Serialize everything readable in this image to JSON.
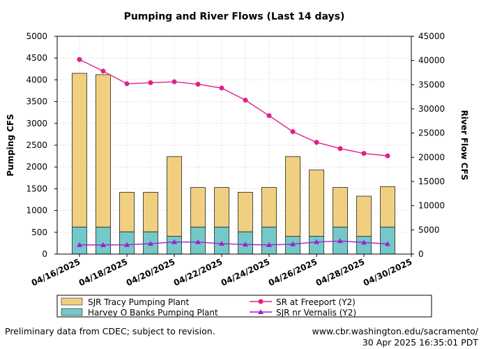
{
  "chart_data": {
    "type": "bar",
    "title": "Pumping and River Flows (Last 14 days)",
    "ylabel": "Pumping CFS",
    "y2label": "River Flow CFS",
    "ylim": [
      0,
      5000
    ],
    "y2lim": [
      0,
      45000
    ],
    "yticks": [
      0,
      500,
      1000,
      1500,
      2000,
      2500,
      3000,
      3500,
      4000,
      4500,
      5000
    ],
    "y2ticks": [
      0,
      5000,
      10000,
      15000,
      20000,
      25000,
      30000,
      35000,
      40000,
      45000
    ],
    "x_dates": [
      "04/16/2025",
      "04/17/2025",
      "04/18/2025",
      "04/19/2025",
      "04/20/2025",
      "04/21/2025",
      "04/22/2025",
      "04/23/2025",
      "04/24/2025",
      "04/25/2025",
      "04/26/2025",
      "04/27/2025",
      "04/28/2025",
      "04/29/2025"
    ],
    "xtick_labels": [
      "04/16/2025",
      "04/18/2025",
      "04/20/2025",
      "04/22/2025",
      "04/24/2025",
      "04/26/2025",
      "04/28/2025",
      "04/30/2025"
    ],
    "xtick_index": [
      0,
      2,
      4,
      6,
      8,
      10,
      12,
      14
    ],
    "stacked_series": [
      {
        "name": "Harvey O Banks Pumping Plant",
        "color": "#74c8c8",
        "values": [
          620,
          620,
          510,
          510,
          410,
          620,
          620,
          510,
          620,
          410,
          410,
          620,
          410,
          620
        ]
      },
      {
        "name": "SJR Tracy Pumping Plant",
        "color": "#f0d080",
        "values": [
          3530,
          3500,
          910,
          910,
          1830,
          910,
          910,
          910,
          910,
          1830,
          1520,
          910,
          920,
          930
        ]
      }
    ],
    "line_series": [
      {
        "name": "SR at Freeport (Y2)",
        "color": "#e0208a",
        "marker": "circle",
        "values": [
          40200,
          37800,
          35200,
          35400,
          35600,
          35100,
          34300,
          31800,
          28600,
          25300,
          23100,
          21800,
          20800,
          20300
        ]
      },
      {
        "name": "SJR nr Vernalis (Y2)",
        "color": "#a020d0",
        "marker": "triangle",
        "values": [
          1900,
          1880,
          1920,
          2150,
          2500,
          2480,
          2160,
          1980,
          1900,
          2050,
          2500,
          2700,
          2400,
          2100
        ]
      }
    ]
  },
  "legend": {
    "tracy": "SJR Tracy Pumping Plant",
    "banks": "Harvey O Banks Pumping Plant",
    "freeport": "SR at Freeport (Y2)",
    "vernalis": "SJR nr Vernalis (Y2)"
  },
  "footer": {
    "note": "Preliminary data from CDEC; subject to revision.",
    "url": "www.cbr.washington.edu/sacramento/",
    "timestamp": "30 Apr 2025 16:35:01 PDT"
  }
}
